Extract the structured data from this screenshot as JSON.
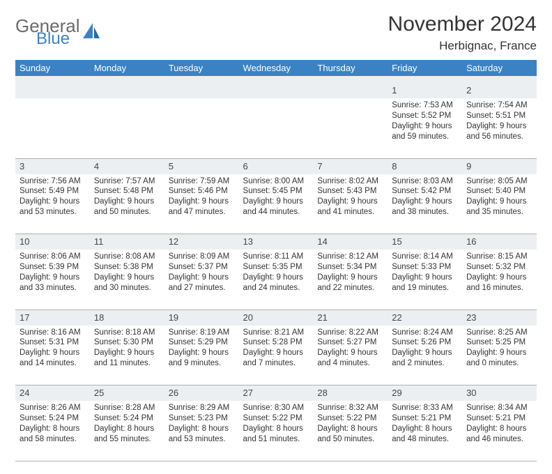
{
  "logo": {
    "line1": "General",
    "line2": "Blue"
  },
  "title": "November 2024",
  "location": "Herbignac, France",
  "colors": {
    "header_bg": "#3b82c4",
    "header_text": "#ffffff",
    "daynum_bg": "#eceff1",
    "border": "#b0b0b0",
    "text": "#333333",
    "logo_grey": "#6a6a6a",
    "logo_blue": "#3b82c4"
  },
  "weekdays": [
    "Sunday",
    "Monday",
    "Tuesday",
    "Wednesday",
    "Thursday",
    "Friday",
    "Saturday"
  ],
  "weeks": [
    [
      null,
      null,
      null,
      null,
      null,
      {
        "n": "1",
        "sunrise": "7:53 AM",
        "sunset": "5:52 PM",
        "day_h": "9",
        "day_m": "59"
      },
      {
        "n": "2",
        "sunrise": "7:54 AM",
        "sunset": "5:51 PM",
        "day_h": "9",
        "day_m": "56"
      }
    ],
    [
      {
        "n": "3",
        "sunrise": "7:56 AM",
        "sunset": "5:49 PM",
        "day_h": "9",
        "day_m": "53"
      },
      {
        "n": "4",
        "sunrise": "7:57 AM",
        "sunset": "5:48 PM",
        "day_h": "9",
        "day_m": "50"
      },
      {
        "n": "5",
        "sunrise": "7:59 AM",
        "sunset": "5:46 PM",
        "day_h": "9",
        "day_m": "47"
      },
      {
        "n": "6",
        "sunrise": "8:00 AM",
        "sunset": "5:45 PM",
        "day_h": "9",
        "day_m": "44"
      },
      {
        "n": "7",
        "sunrise": "8:02 AM",
        "sunset": "5:43 PM",
        "day_h": "9",
        "day_m": "41"
      },
      {
        "n": "8",
        "sunrise": "8:03 AM",
        "sunset": "5:42 PM",
        "day_h": "9",
        "day_m": "38"
      },
      {
        "n": "9",
        "sunrise": "8:05 AM",
        "sunset": "5:40 PM",
        "day_h": "9",
        "day_m": "35"
      }
    ],
    [
      {
        "n": "10",
        "sunrise": "8:06 AM",
        "sunset": "5:39 PM",
        "day_h": "9",
        "day_m": "33"
      },
      {
        "n": "11",
        "sunrise": "8:08 AM",
        "sunset": "5:38 PM",
        "day_h": "9",
        "day_m": "30"
      },
      {
        "n": "12",
        "sunrise": "8:09 AM",
        "sunset": "5:37 PM",
        "day_h": "9",
        "day_m": "27"
      },
      {
        "n": "13",
        "sunrise": "8:11 AM",
        "sunset": "5:35 PM",
        "day_h": "9",
        "day_m": "24"
      },
      {
        "n": "14",
        "sunrise": "8:12 AM",
        "sunset": "5:34 PM",
        "day_h": "9",
        "day_m": "22"
      },
      {
        "n": "15",
        "sunrise": "8:14 AM",
        "sunset": "5:33 PM",
        "day_h": "9",
        "day_m": "19"
      },
      {
        "n": "16",
        "sunrise": "8:15 AM",
        "sunset": "5:32 PM",
        "day_h": "9",
        "day_m": "16"
      }
    ],
    [
      {
        "n": "17",
        "sunrise": "8:16 AM",
        "sunset": "5:31 PM",
        "day_h": "9",
        "day_m": "14"
      },
      {
        "n": "18",
        "sunrise": "8:18 AM",
        "sunset": "5:30 PM",
        "day_h": "9",
        "day_m": "11"
      },
      {
        "n": "19",
        "sunrise": "8:19 AM",
        "sunset": "5:29 PM",
        "day_h": "9",
        "day_m": "9"
      },
      {
        "n": "20",
        "sunrise": "8:21 AM",
        "sunset": "5:28 PM",
        "day_h": "9",
        "day_m": "7"
      },
      {
        "n": "21",
        "sunrise": "8:22 AM",
        "sunset": "5:27 PM",
        "day_h": "9",
        "day_m": "4"
      },
      {
        "n": "22",
        "sunrise": "8:24 AM",
        "sunset": "5:26 PM",
        "day_h": "9",
        "day_m": "2"
      },
      {
        "n": "23",
        "sunrise": "8:25 AM",
        "sunset": "5:25 PM",
        "day_h": "9",
        "day_m": "0"
      }
    ],
    [
      {
        "n": "24",
        "sunrise": "8:26 AM",
        "sunset": "5:24 PM",
        "day_h": "8",
        "day_m": "58"
      },
      {
        "n": "25",
        "sunrise": "8:28 AM",
        "sunset": "5:24 PM",
        "day_h": "8",
        "day_m": "55"
      },
      {
        "n": "26",
        "sunrise": "8:29 AM",
        "sunset": "5:23 PM",
        "day_h": "8",
        "day_m": "53"
      },
      {
        "n": "27",
        "sunrise": "8:30 AM",
        "sunset": "5:22 PM",
        "day_h": "8",
        "day_m": "51"
      },
      {
        "n": "28",
        "sunrise": "8:32 AM",
        "sunset": "5:22 PM",
        "day_h": "8",
        "day_m": "50"
      },
      {
        "n": "29",
        "sunrise": "8:33 AM",
        "sunset": "5:21 PM",
        "day_h": "8",
        "day_m": "48"
      },
      {
        "n": "30",
        "sunrise": "8:34 AM",
        "sunset": "5:21 PM",
        "day_h": "8",
        "day_m": "46"
      }
    ]
  ],
  "labels": {
    "sunrise": "Sunrise:",
    "sunset": "Sunset:",
    "daylight": "Daylight:",
    "hours": "hours",
    "and": "and",
    "minutes": "minutes."
  }
}
